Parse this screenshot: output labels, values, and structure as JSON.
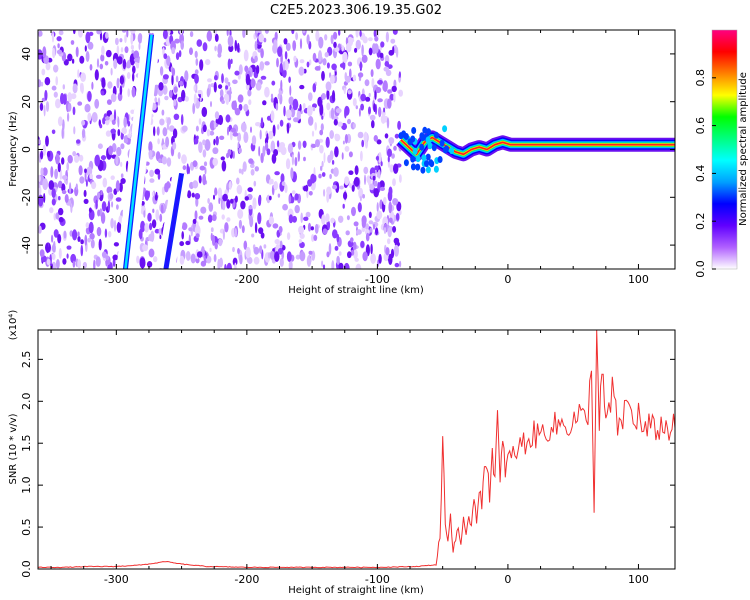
{
  "title": "C2E5.2023.306.19.35.G02",
  "chart_data": [
    {
      "type": "heatmap",
      "xlabel": "Height of straight line (km)",
      "ylabel": "Frequency (Hz)",
      "xlim": [
        -360,
        128
      ],
      "ylim": [
        -50,
        50
      ],
      "x_ticks": [
        -300,
        -200,
        -100,
        0,
        100
      ],
      "y_ticks": [
        -40,
        -20,
        0,
        20,
        40
      ],
      "colorbar": {
        "label": "Normalized spectral amplitude",
        "range": [
          0,
          1
        ],
        "ticks": [
          0.0,
          0.2,
          0.4,
          0.6,
          0.8
        ],
        "colors": [
          "#ffffff",
          "#b060ff",
          "#6000ff",
          "#0000ff",
          "#00a0ff",
          "#00ffff",
          "#00ff80",
          "#00ff00",
          "#ffff00",
          "#ff8000",
          "#ff0000",
          "#ff0080"
        ]
      },
      "noise_region_x": [
        -360,
        -82
      ],
      "diagonal_features": [
        {
          "x": [
            -293,
            -273
          ],
          "y": [
            -50,
            48
          ],
          "color": "#00e0ff"
        },
        {
          "x": [
            -262,
            -250
          ],
          "y": [
            -50,
            -10
          ],
          "color": "#2010ff"
        }
      ],
      "signal_track": {
        "x": [
          -82,
          -76,
          -70,
          -64,
          -58,
          -52,
          -46,
          -40,
          -34,
          -28,
          -22,
          -16,
          -10,
          -4,
          2,
          10,
          20,
          40,
          60,
          80,
          100,
          128
        ],
        "y": [
          4,
          1,
          -2,
          3,
          5,
          3,
          1,
          -1,
          -2,
          0,
          1,
          0,
          2,
          3,
          2,
          2,
          2,
          2,
          2,
          2,
          2,
          2
        ]
      }
    },
    {
      "type": "line",
      "xlabel": "Height of straight line (km)",
      "ylabel": "SNR (10 * v/v)",
      "y_multiplier": "(x10⁴)",
      "xlim": [
        -360,
        128
      ],
      "ylim": [
        0,
        2.85
      ],
      "x_ticks": [
        -300,
        -200,
        -100,
        0,
        100
      ],
      "y_ticks": [
        0.0,
        0.5,
        1.0,
        1.5,
        2.0,
        2.5
      ],
      "line_color": "#f03030",
      "series": [
        {
          "x": [
            -360,
            -340,
            -320,
            -300,
            -280,
            -270,
            -262,
            -255,
            -245,
            -230,
            -200,
            -150,
            -100,
            -70,
            -55,
            -52,
            -50,
            -48,
            -46,
            -44,
            -42,
            -40,
            -38,
            -36,
            -34,
            -32,
            -30,
            -28,
            -26,
            -24,
            -22,
            -20,
            -18,
            -16,
            -14,
            -12,
            -10,
            -8,
            -6,
            -4,
            -2,
            0,
            4,
            8,
            12,
            16,
            20,
            24,
            28,
            32,
            36,
            40,
            44,
            48,
            52,
            56,
            60,
            64,
            66,
            68,
            70,
            72,
            74,
            76,
            80,
            84,
            88,
            92,
            96,
            100,
            104,
            108,
            112,
            116,
            120,
            128
          ],
          "y": [
            0.02,
            0.02,
            0.03,
            0.03,
            0.05,
            0.07,
            0.09,
            0.07,
            0.05,
            0.03,
            0.02,
            0.02,
            0.02,
            0.03,
            0.05,
            0.4,
            1.45,
            0.6,
            0.3,
            0.65,
            0.2,
            0.4,
            0.5,
            0.25,
            0.55,
            0.35,
            0.7,
            0.5,
            0.9,
            0.6,
            1.0,
            0.8,
            1.1,
            1.3,
            0.9,
            1.4,
            1.1,
            1.8,
            1.0,
            1.5,
            1.2,
            1.3,
            1.35,
            1.45,
            1.5,
            1.55,
            1.6,
            1.6,
            1.65,
            1.7,
            1.7,
            1.72,
            1.75,
            1.72,
            1.8,
            1.85,
            1.7,
            2.3,
            0.75,
            2.85,
            1.6,
            2.4,
            1.9,
            1.75,
            2.1,
            1.7,
            1.8,
            2.0,
            1.75,
            1.85,
            1.6,
            1.7,
            1.65,
            1.7,
            1.68,
            1.68
          ]
        }
      ]
    }
  ]
}
